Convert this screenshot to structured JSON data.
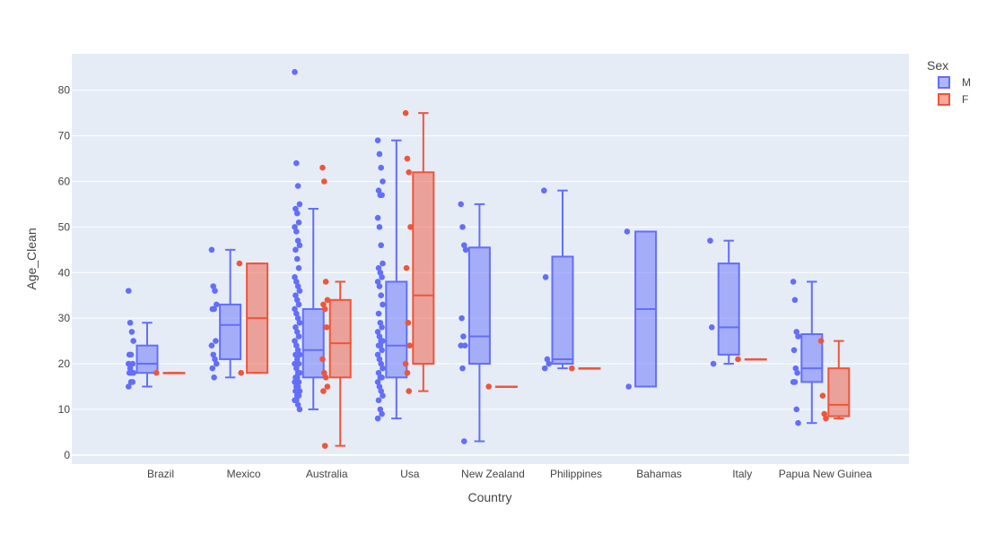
{
  "chart_data": {
    "type": "box",
    "xlabel": "Country",
    "ylabel": "Age_Clean",
    "ylim": [
      -2,
      88
    ],
    "yticks": [
      0,
      10,
      20,
      30,
      40,
      50,
      60,
      70,
      80
    ],
    "categories": [
      "Brazil",
      "Mexico",
      "Australia",
      "Usa",
      "New Zealand",
      "Philippines",
      "Bahamas",
      "Italy",
      "Papua New Guinea"
    ],
    "legend": {
      "title": "Sex",
      "placement": "top-right"
    },
    "grid": true,
    "series": [
      {
        "name": "M",
        "color": "#636efa",
        "fill": "rgba(99,110,250,0.5)",
        "boxes": [
          {
            "category": "Brazil",
            "min": 15,
            "q1": 18,
            "median": 20,
            "q3": 24,
            "max": 29,
            "points": [
              36,
              29,
              27,
              25,
              22,
              22,
              20,
              20,
              19,
              18,
              18,
              18,
              16,
              16,
              15
            ]
          },
          {
            "category": "Mexico",
            "min": 17,
            "q1": 21,
            "median": 28.5,
            "q3": 33,
            "max": 45,
            "points": [
              45,
              37,
              36,
              33,
              32,
              32,
              25,
              24,
              22,
              21,
              20,
              19,
              17
            ]
          },
          {
            "category": "Australia",
            "min": 10,
            "q1": 17,
            "median": 23,
            "q3": 32,
            "max": 54,
            "points": [
              84,
              64,
              59,
              55,
              54,
              53,
              51,
              50,
              49,
              47,
              46,
              45,
              43,
              41,
              39,
              38,
              37,
              36,
              35,
              34,
              33,
              32,
              31,
              30,
              29,
              28,
              27,
              26,
              25,
              24,
              23,
              22,
              22,
              21,
              20,
              20,
              19,
              18,
              18,
              17,
              17,
              16,
              16,
              15,
              15,
              14,
              14,
              13,
              13,
              12,
              12,
              11,
              10
            ]
          },
          {
            "category": "Usa",
            "min": 8,
            "q1": 17,
            "median": 24,
            "q3": 38,
            "max": 69,
            "points": [
              69,
              66,
              63,
              60,
              58,
              57,
              57,
              52,
              50,
              46,
              42,
              41,
              40,
              39,
              38,
              37,
              35,
              33,
              31,
              29,
              28,
              27,
              26,
              25,
              25,
              24,
              24,
              23,
              22,
              21,
              20,
              19,
              18,
              17,
              17,
              16,
              15,
              14,
              13,
              12,
              10,
              9,
              8
            ]
          },
          {
            "category": "New Zealand",
            "min": 3,
            "q1": 20,
            "median": 26,
            "q3": 45.5,
            "max": 55,
            "points": [
              55,
              50,
              46,
              45,
              30,
              26,
              24,
              24,
              19,
              3
            ]
          },
          {
            "category": "Philippines",
            "min": 19,
            "q1": 20,
            "median": 21,
            "q3": 43.5,
            "max": 58,
            "points": [
              58,
              39,
              21,
              20,
              19
            ]
          },
          {
            "category": "Bahamas",
            "min": 15,
            "q1": 15,
            "median": 32,
            "q3": 49,
            "max": 49,
            "points": [
              49,
              15
            ]
          },
          {
            "category": "Italy",
            "min": 20,
            "q1": 22,
            "median": 28,
            "q3": 42,
            "max": 47,
            "points": [
              47,
              28,
              20
            ]
          },
          {
            "category": "Papua New Guinea",
            "min": 7,
            "q1": 16,
            "median": 19,
            "q3": 26.5,
            "max": 38,
            "points": [
              38,
              34,
              27,
              26,
              23,
              19,
              18,
              16,
              16,
              10,
              7
            ]
          }
        ]
      },
      {
        "name": "F",
        "color": "#ef553b",
        "fill": "rgba(239,85,59,0.5)",
        "boxes": [
          {
            "category": "Brazil",
            "min": 18,
            "q1": 18,
            "median": 18,
            "q3": 18,
            "max": 18,
            "points": [
              18
            ]
          },
          {
            "category": "Mexico",
            "min": 18,
            "q1": 18,
            "median": 30,
            "q3": 42,
            "max": 42,
            "points": [
              42,
              18
            ]
          },
          {
            "category": "Australia",
            "min": 2,
            "q1": 17,
            "median": 24.5,
            "q3": 34,
            "max": 38,
            "points": [
              63,
              60,
              38,
              34,
              33,
              32,
              28,
              21,
              18,
              17,
              15,
              14,
              2
            ]
          },
          {
            "category": "Usa",
            "min": 14,
            "q1": 20,
            "median": 35,
            "q3": 62,
            "max": 75,
            "points": [
              75,
              65,
              62,
              50,
              41,
              29,
              24,
              20,
              18,
              14
            ]
          },
          {
            "category": "New Zealand",
            "min": 15,
            "q1": 15,
            "median": 15,
            "q3": 15,
            "max": 15,
            "points": [
              15
            ]
          },
          {
            "category": "Philippines",
            "min": 19,
            "q1": 19,
            "median": 19,
            "q3": 19,
            "max": 19,
            "points": [
              19
            ]
          },
          {
            "category": "Italy",
            "min": 21,
            "q1": 21,
            "median": 21,
            "q3": 21,
            "max": 21,
            "points": [
              21
            ]
          },
          {
            "category": "Papua New Guinea",
            "min": 8,
            "q1": 8.5,
            "median": 11,
            "q3": 19,
            "max": 25,
            "points": [
              25,
              13,
              9,
              8
            ]
          }
        ]
      }
    ]
  }
}
